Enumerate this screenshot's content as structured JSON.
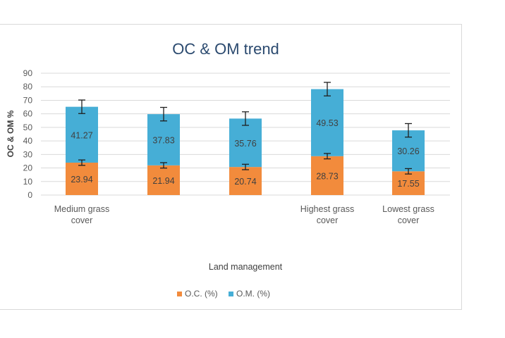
{
  "chart_data": {
    "type": "bar",
    "stacked": true,
    "title": "OC & OM trend",
    "xlabel": "Land management",
    "ylabel": "OC & OM %",
    "ylim": [
      0,
      90
    ],
    "yticks": [
      0,
      10,
      20,
      30,
      40,
      50,
      60,
      70,
      80,
      90
    ],
    "categories": [
      [
        "Medium grass",
        "cover"
      ],
      [],
      [],
      [
        "Highest grass",
        "cover"
      ],
      [
        "Lowest grass",
        "cover"
      ]
    ],
    "series": [
      {
        "name": "O.C. (%)",
        "color": "#f28b3c",
        "values": [
          23.94,
          21.94,
          20.74,
          28.73,
          17.55
        ],
        "labels": [
          "23.94",
          "21.94",
          "20.74",
          "28.73",
          "17.55"
        ],
        "error": [
          2,
          2,
          2,
          2,
          2
        ]
      },
      {
        "name": "O.M. (%)",
        "color": "#46aed6",
        "values": [
          41.27,
          37.83,
          35.76,
          49.53,
          30.26
        ],
        "labels": [
          "41.27",
          "37.83",
          "35.76",
          "49.53",
          "30.26"
        ],
        "error": [
          5,
          5,
          5,
          5,
          5
        ]
      }
    ],
    "legend_position": "bottom",
    "grid": true
  }
}
